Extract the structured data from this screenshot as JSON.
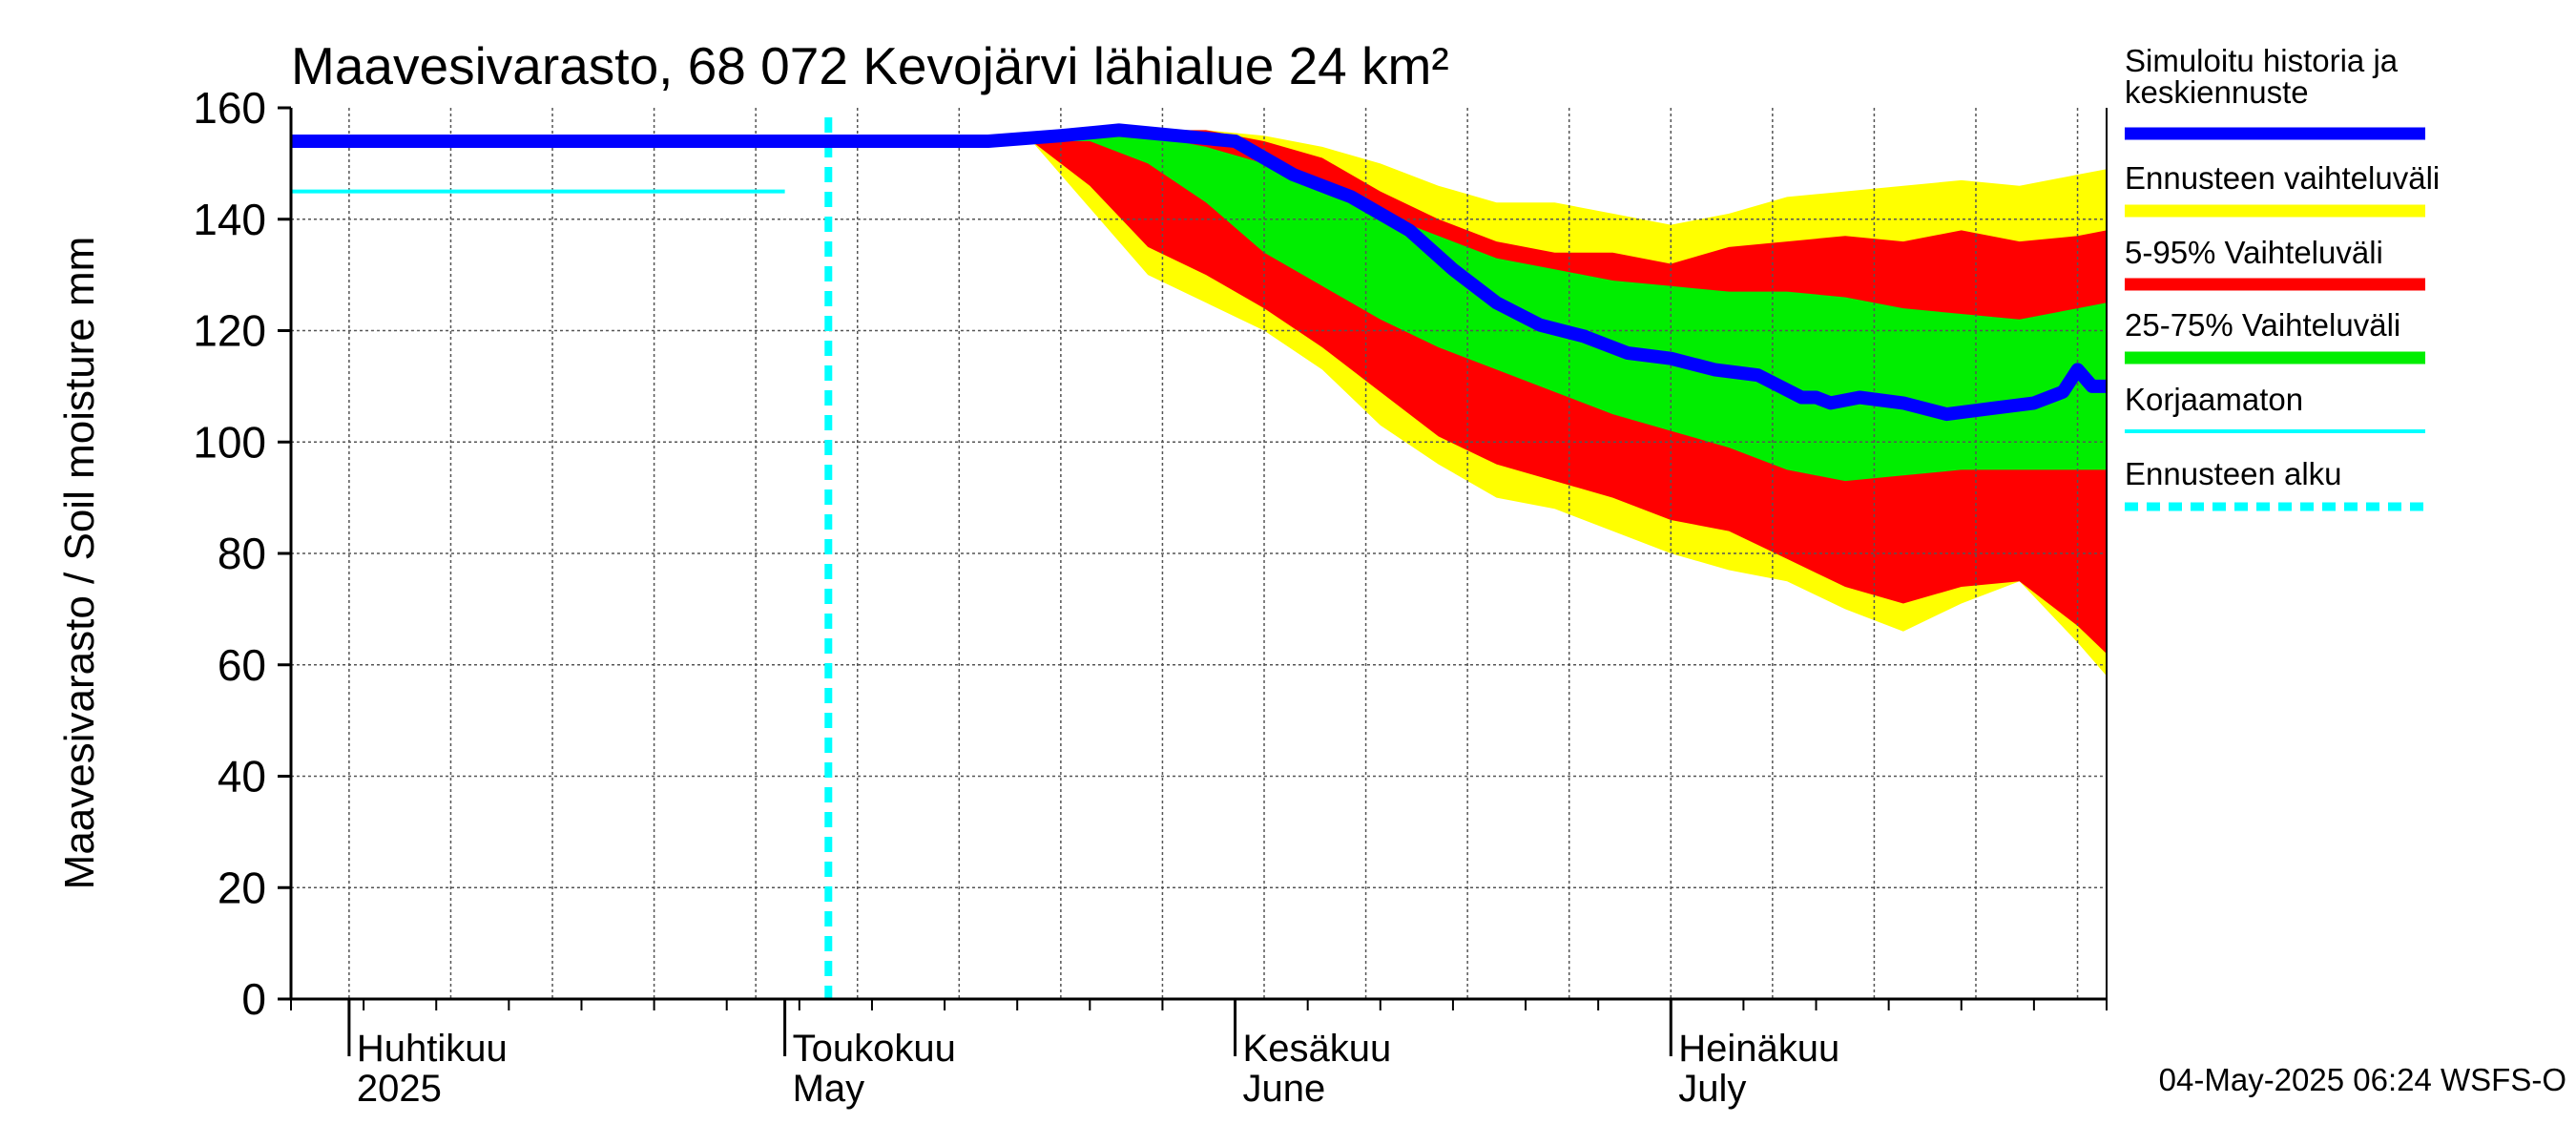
{
  "chart_data": {
    "type": "area",
    "title": "Maavesivarasto, 68 072 Kevojärvi lähialue 24 km²",
    "ylabel": "Maavesivarasto / Soil moisture   mm",
    "ylim": [
      0,
      160
    ],
    "yticks": [
      "0",
      "20",
      "40",
      "60",
      "80",
      "100",
      "120",
      "140",
      "160"
    ],
    "xlim": [
      "2025-03-28",
      "2025-07-31"
    ],
    "grid": true,
    "months": [
      {
        "date": "2025-04-01",
        "fi": "Huhtikuu",
        "en": "2025"
      },
      {
        "date": "2025-05-01",
        "fi": "Toukokuu",
        "en": "May"
      },
      {
        "date": "2025-06-01",
        "fi": "Kesäkuu",
        "en": "June"
      },
      {
        "date": "2025-07-01",
        "fi": "Heinäkuu",
        "en": "July"
      }
    ],
    "forecast_start": "2025-05-04",
    "korjaamaton": {
      "x_start": "2025-03-28",
      "x_end": "2025-05-01",
      "value": 145
    },
    "series": [
      {
        "name": "Simuloitu historia ja keskiennuste",
        "color": "#0000ff",
        "x": [
          "2025-03-28",
          "2025-04-15",
          "2025-05-04",
          "2025-05-15",
          "2025-05-20",
          "2025-05-24",
          "2025-05-28",
          "2025-06-01",
          "2025-06-05",
          "2025-06-09",
          "2025-06-11",
          "2025-06-13",
          "2025-06-16",
          "2025-06-19",
          "2025-06-22",
          "2025-06-25",
          "2025-06-28",
          "2025-07-01",
          "2025-07-04",
          "2025-07-07",
          "2025-07-10",
          "2025-07-11",
          "2025-07-12",
          "2025-07-14",
          "2025-07-17",
          "2025-07-20",
          "2025-07-23",
          "2025-07-26",
          "2025-07-28",
          "2025-07-29",
          "2025-07-30",
          "2025-07-31"
        ],
        "values": [
          154,
          154,
          154,
          154,
          155,
          156,
          155,
          154,
          148,
          144,
          141,
          138,
          131,
          125,
          121,
          119,
          116,
          115,
          113,
          112,
          108,
          108,
          107,
          108,
          107,
          105,
          106,
          107,
          109,
          113,
          110,
          110
        ]
      },
      {
        "name": "Ennusteen vaihteluväli",
        "color": "#ffff00",
        "x": [
          "2025-05-18",
          "2025-05-22",
          "2025-05-26",
          "2025-05-30",
          "2025-06-03",
          "2025-06-07",
          "2025-06-11",
          "2025-06-15",
          "2025-06-19",
          "2025-06-23",
          "2025-06-27",
          "2025-07-01",
          "2025-07-05",
          "2025-07-09",
          "2025-07-13",
          "2025-07-17",
          "2025-07-21",
          "2025-07-25",
          "2025-07-29",
          "2025-07-31"
        ],
        "upper": [
          154,
          156,
          156,
          156,
          155,
          153,
          150,
          146,
          143,
          143,
          141,
          139,
          141,
          144,
          145,
          146,
          147,
          146,
          148,
          149
        ],
        "lower": [
          154,
          142,
          130,
          125,
          120,
          113,
          103,
          96,
          90,
          88,
          84,
          80,
          77,
          75,
          70,
          66,
          71,
          75,
          64,
          58
        ]
      },
      {
        "name": "5-95% Vaihteluväli",
        "color": "#ff0000",
        "x": [
          "2025-05-18",
          "2025-05-22",
          "2025-05-26",
          "2025-05-30",
          "2025-06-03",
          "2025-06-07",
          "2025-06-11",
          "2025-06-15",
          "2025-06-19",
          "2025-06-23",
          "2025-06-27",
          "2025-07-01",
          "2025-07-05",
          "2025-07-09",
          "2025-07-13",
          "2025-07-17",
          "2025-07-21",
          "2025-07-25",
          "2025-07-29",
          "2025-07-31"
        ],
        "upper": [
          154,
          156,
          156,
          156,
          154,
          151,
          145,
          140,
          136,
          134,
          134,
          132,
          135,
          136,
          137,
          136,
          138,
          136,
          137,
          138
        ],
        "lower": [
          154,
          146,
          135,
          130,
          124,
          117,
          109,
          101,
          96,
          93,
          90,
          86,
          84,
          79,
          74,
          71,
          74,
          75,
          67,
          62
        ]
      },
      {
        "name": "25-75% Vaihteluväli",
        "color": "#00ee00",
        "x": [
          "2025-05-18",
          "2025-05-22",
          "2025-05-26",
          "2025-05-30",
          "2025-06-03",
          "2025-06-07",
          "2025-06-11",
          "2025-06-15",
          "2025-06-19",
          "2025-06-23",
          "2025-06-27",
          "2025-07-01",
          "2025-07-05",
          "2025-07-09",
          "2025-07-13",
          "2025-07-17",
          "2025-07-21",
          "2025-07-25",
          "2025-07-29",
          "2025-07-31"
        ],
        "upper": [
          154,
          155,
          155,
          153,
          150,
          145,
          141,
          137,
          133,
          131,
          129,
          128,
          127,
          127,
          126,
          124,
          123,
          122,
          124,
          125
        ],
        "lower": [
          154,
          154,
          150,
          143,
          134,
          128,
          122,
          117,
          113,
          109,
          105,
          102,
          99,
          95,
          93,
          94,
          95,
          95,
          95,
          95
        ]
      }
    ],
    "legend": [
      {
        "label": "Simuloitu historia ja keskiennuste",
        "color": "#0000ff",
        "style": "solid"
      },
      {
        "label": "Ennusteen vaihteluväli",
        "color": "#ffff00",
        "style": "solid"
      },
      {
        "label": "5-95% Vaihteluväli",
        "color": "#ff0000",
        "style": "solid"
      },
      {
        "label": "25-75% Vaihteluväli",
        "color": "#00ee00",
        "style": "solid"
      },
      {
        "label": "Korjaamaton",
        "color": "#00ffff",
        "style": "thin"
      },
      {
        "label": "Ennusteen alku",
        "color": "#00ffff",
        "style": "dashed"
      }
    ],
    "legend_position": "right",
    "timestamp": "04-May-2025 06:24 WSFS-O"
  }
}
